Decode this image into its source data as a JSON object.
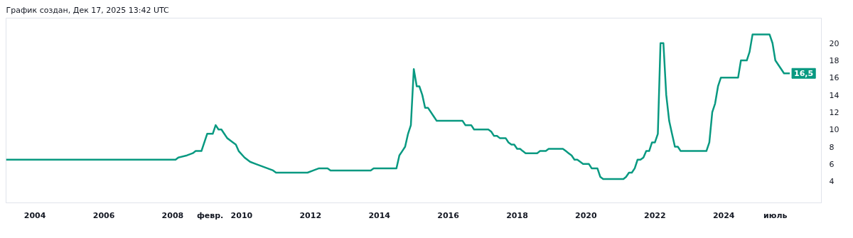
{
  "chart_data": {
    "type": "line",
    "title": "График создан, Дек 17, 2025 13:42 UTC",
    "x": [
      "2003-03",
      "2008-02",
      "2008-03",
      "2008-06",
      "2008-08",
      "2008-09",
      "2008-11",
      "2009-01",
      "2009-03",
      "2009-04",
      "2009-05",
      "2009-06",
      "2009-07",
      "2009-08",
      "2009-09",
      "2009-10",
      "2009-11",
      "2009-12",
      "2010-02",
      "2010-04",
      "2010-06",
      "2010-08",
      "2010-10",
      "2010-12",
      "2011-01",
      "2011-12",
      "2012-02",
      "2012-04",
      "2012-07",
      "2012-08",
      "2013-10",
      "2013-11",
      "2014-07",
      "2014-08",
      "2014-09",
      "2014-10",
      "2014-11",
      "2014-12",
      "2015-01",
      "2015-02",
      "2015-03",
      "2015-04",
      "2015-05",
      "2015-06",
      "2015-08",
      "2015-09",
      "2016-06",
      "2016-07",
      "2016-09",
      "2016-10",
      "2017-03",
      "2017-04",
      "2017-05",
      "2017-06",
      "2017-07",
      "2017-09",
      "2017-10",
      "2017-11",
      "2017-12",
      "2018-01",
      "2018-02",
      "2018-03",
      "2018-04",
      "2018-08",
      "2018-09",
      "2018-11",
      "2018-12",
      "2019-05",
      "2019-06",
      "2019-07",
      "2019-08",
      "2019-09",
      "2019-10",
      "2019-11",
      "2019-12",
      "2020-02",
      "2020-03",
      "2020-05",
      "2020-06",
      "2020-07",
      "2021-02",
      "2021-03",
      "2021-04",
      "2021-05",
      "2021-06",
      "2021-07",
      "2021-08",
      "2021-09",
      "2021-10",
      "2021-11",
      "2021-12",
      "2022-01",
      "2022-02",
      "2022-03",
      "2022-04",
      "2022-05",
      "2022-06",
      "2022-07",
      "2022-08",
      "2022-09",
      "2022-10",
      "2023-07",
      "2023-08",
      "2023-09",
      "2023-10",
      "2023-11",
      "2023-12",
      "2024-06",
      "2024-07",
      "2024-09",
      "2024-10",
      "2024-11",
      "2025-05",
      "2025-06",
      "2025-07",
      "2025-09",
      "2025-10",
      "2025-12"
    ],
    "series": [
      {
        "color": "#089981",
        "values": [
          6.5,
          6.5,
          6.75,
          7.0,
          7.25,
          7.5,
          7.5,
          9.5,
          9.5,
          10.5,
          10.0,
          10.0,
          9.5,
          9.0,
          8.75,
          8.5,
          8.25,
          7.5,
          6.75,
          6.25,
          6.0,
          5.75,
          5.5,
          5.25,
          5.0,
          5.0,
          5.25,
          5.5,
          5.5,
          5.25,
          5.25,
          5.5,
          5.5,
          7.0,
          7.5,
          8.0,
          9.5,
          10.5,
          17.0,
          15.0,
          15.0,
          14.0,
          12.5,
          12.5,
          11.5,
          11.0,
          11.0,
          10.5,
          10.5,
          10.0,
          10.0,
          9.75,
          9.25,
          9.25,
          9.0,
          9.0,
          8.5,
          8.25,
          8.25,
          7.75,
          7.75,
          7.5,
          7.25,
          7.25,
          7.5,
          7.5,
          7.75,
          7.75,
          7.5,
          7.25,
          7.0,
          6.5,
          6.5,
          6.25,
          6.0,
          6.0,
          5.5,
          5.5,
          4.5,
          4.25,
          4.25,
          4.5,
          5.0,
          5.0,
          5.5,
          6.5,
          6.5,
          6.75,
          7.5,
          7.5,
          8.5,
          8.5,
          9.5,
          20.0,
          20.0,
          14.0,
          11.0,
          9.5,
          8.0,
          8.0,
          7.5,
          7.5,
          8.5,
          12.0,
          13.0,
          15.0,
          16.0,
          16.0,
          18.0,
          18.0,
          19.0,
          21.0,
          21.0,
          20.0,
          18.0,
          17.0,
          16.5,
          16.5
        ]
      }
    ],
    "annotations": [
      {
        "text": "16,5",
        "x": "2025-12",
        "y": 16.5
      }
    ],
    "xlim": [
      "2003-03",
      "2026-11"
    ],
    "xticks": [
      {
        "value": "2004-01",
        "label": "2004"
      },
      {
        "value": "2006-01",
        "label": "2006"
      },
      {
        "value": "2008-01",
        "label": "2008"
      },
      {
        "value": "2009-02",
        "label": "февр."
      },
      {
        "value": "2010-01",
        "label": "2010"
      },
      {
        "value": "2012-01",
        "label": "2012"
      },
      {
        "value": "2014-01",
        "label": "2014"
      },
      {
        "value": "2016-01",
        "label": "2016"
      },
      {
        "value": "2018-01",
        "label": "2018"
      },
      {
        "value": "2020-01",
        "label": "2020"
      },
      {
        "value": "2022-01",
        "label": "2022"
      },
      {
        "value": "2024-01",
        "label": "2024"
      },
      {
        "value": "2025-07",
        "label": "июль"
      }
    ],
    "ylim": [
      1.5,
      22.9
    ],
    "yticks": [
      4,
      6,
      8,
      10,
      12,
      14,
      16,
      18,
      20
    ],
    "grid": false,
    "line_style": "solid",
    "marker": "none"
  }
}
